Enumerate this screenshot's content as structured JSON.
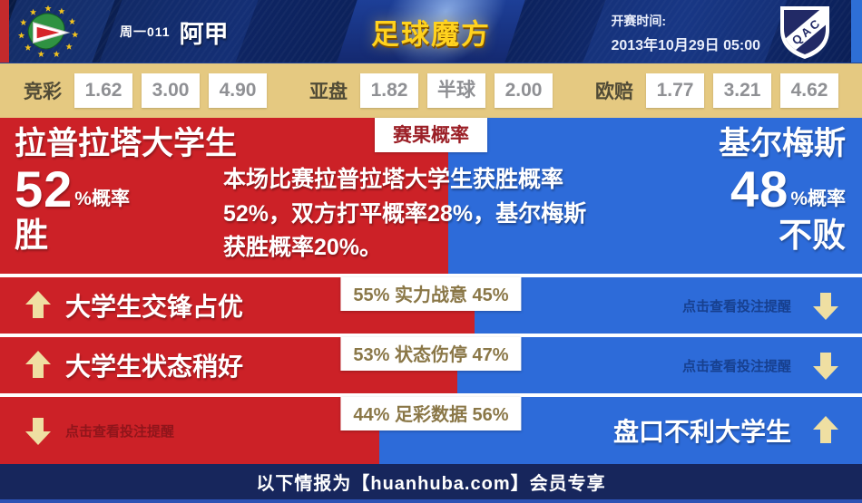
{
  "header": {
    "match_code": "周一011",
    "league_name": "阿甲",
    "brand": "足球魔方",
    "kickoff_label": "开赛时间:",
    "kickoff_datetime": "2013年10月29日 05:00",
    "away_crest_text": "QAC"
  },
  "odds_bar": {
    "groups": [
      {
        "label": "竞彩",
        "values": [
          "1.62",
          "3.00",
          "4.90"
        ]
      },
      {
        "label": "亚盘",
        "values": [
          "1.82",
          "半球",
          "2.00"
        ]
      },
      {
        "label": "欧赔",
        "values": [
          "1.77",
          "3.21",
          "4.62"
        ]
      }
    ]
  },
  "probability": {
    "tab_label": "赛果概率",
    "home": {
      "name": "拉普拉塔大学生",
      "percent": "52",
      "unit": "%概率",
      "verdict": "胜"
    },
    "away": {
      "name": "基尔梅斯",
      "percent": "48",
      "unit": "%概率",
      "verdict": "不败"
    },
    "summary": "本场比赛拉普拉塔大学生获胜概率52%，双方打平概率28%，基尔梅斯获胜概率20%。"
  },
  "factors": [
    {
      "box_label": "55% 实力战意 45%",
      "home_share_percent": 55,
      "red_headline": "大学生交锋占优",
      "blue_hint": "点击查看投注提醒"
    },
    {
      "box_label": "53% 状态伤停 47%",
      "home_share_percent": 53,
      "red_headline": "大学生状态稍好",
      "blue_hint": "点击查看投注提醒"
    },
    {
      "box_label": "44% 足彩数据 56%",
      "home_share_percent": 44,
      "red_hint": "点击查看投注提醒",
      "blue_headline": "盘口不利大学生"
    }
  ],
  "footer": {
    "text": "以下情报为【huanhuba.com】会员专享"
  },
  "colors": {
    "red": "#cc2127",
    "blue": "#2d6bd9",
    "tan": "#e5c981",
    "header_navy": "#0e2563",
    "footer_navy": "#17265c",
    "gold_arrow": "#efdfa2"
  }
}
